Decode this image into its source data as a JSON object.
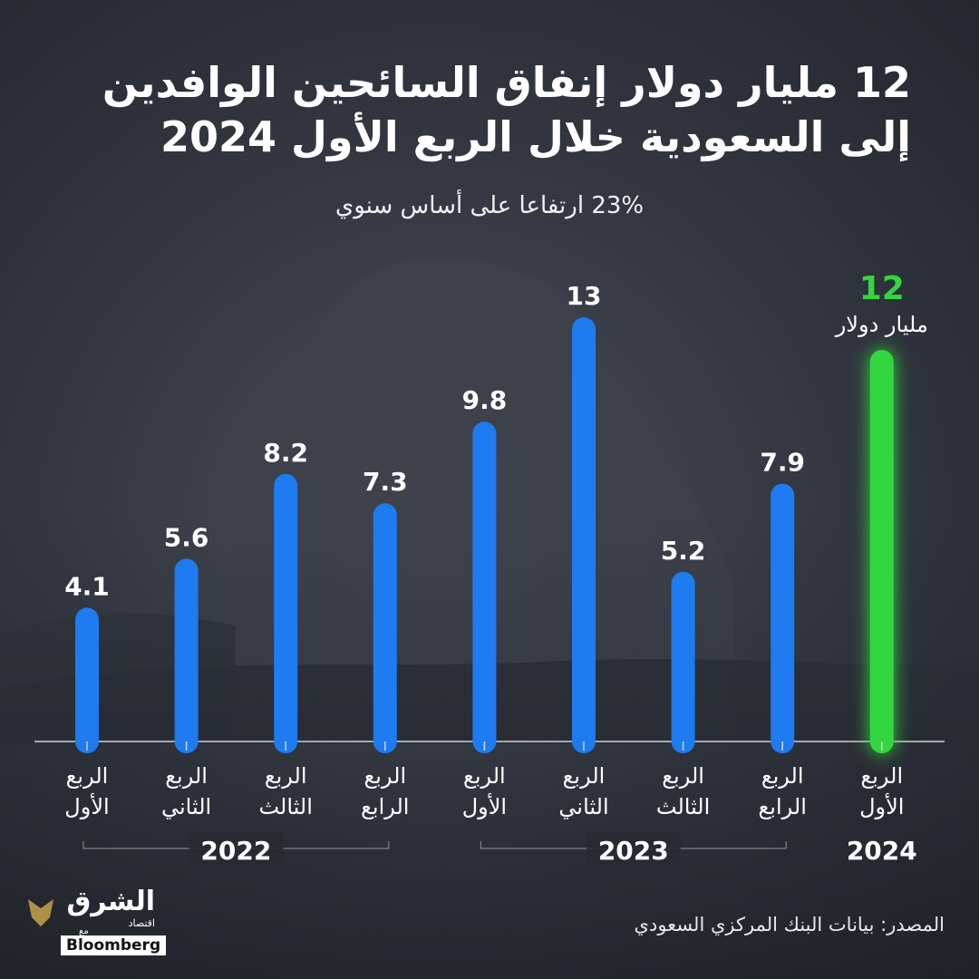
{
  "header": {
    "title_line1": "12 مليار دولار إنفاق السائحين الوافدين",
    "title_line2": "إلى السعودية خلال الربع الأول 2024",
    "subtitle": "23% ارتفاعا على أساس سنوي"
  },
  "chart_data": {
    "type": "bar",
    "categories": [
      [
        "الربع",
        "الأول"
      ],
      [
        "الربع",
        "الثاني"
      ],
      [
        "الربع",
        "الثالث"
      ],
      [
        "الربع",
        "الرابع"
      ],
      [
        "الربع",
        "الأول"
      ],
      [
        "الربع",
        "الثاني"
      ],
      [
        "الربع",
        "الثالث"
      ],
      [
        "الربع",
        "الرابع"
      ],
      [
        "الربع",
        "الأول"
      ]
    ],
    "groups": [
      {
        "label": "2022",
        "from": 0,
        "to": 3
      },
      {
        "label": "2023",
        "from": 4,
        "to": 7
      },
      {
        "label": "2024",
        "from": 8,
        "to": 8
      }
    ],
    "values": [
      4.1,
      5.6,
      8.2,
      7.3,
      9.8,
      13,
      5.2,
      7.9,
      12
    ],
    "value_labels": [
      "4.1",
      "5.6",
      "8.2",
      "7.3",
      "9.8",
      "13",
      "5.2",
      "7.9",
      "12"
    ],
    "highlight_index": 8,
    "highlight_unit": "مليار دولار",
    "ylim": [
      0,
      13
    ],
    "grid": false,
    "colors": {
      "bar": "#1e7bf0",
      "highlight": "#33d63e",
      "text": "#ffffff",
      "axis": "#cfd3d9"
    }
  },
  "footer": {
    "source": "المصدر: بيانات البنك المركزي السعودي",
    "logo_main": "الشرق",
    "logo_sub": "اقتصاد",
    "logo_with": "مع",
    "logo_partner": "Bloomberg"
  }
}
